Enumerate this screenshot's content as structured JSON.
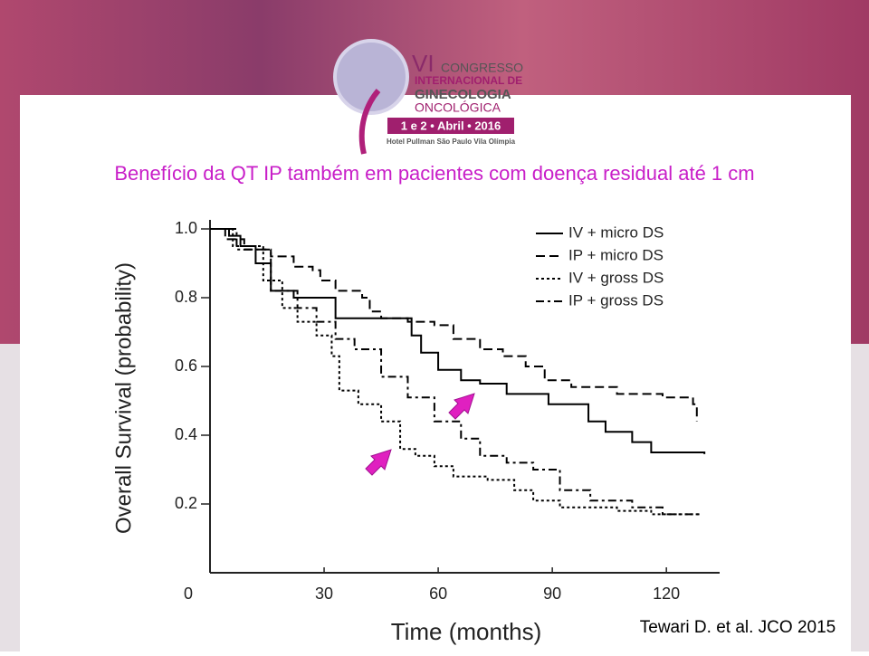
{
  "header": {
    "logo_line1": "VI",
    "logo_line2": "CONGRESSO",
    "logo_line3": "INTERNACIONAL DE",
    "logo_line4": "GINECOLOGIA",
    "logo_line5": "ONCOLÓGICA",
    "logo_date": "1 e 2 • Abril • 2016",
    "logo_venue": "Hotel Pullman São Paulo Vila Olímpia"
  },
  "citation": "Tewari D. et al. JCO 2015",
  "chart_data": {
    "type": "line",
    "step": "post",
    "title": "Benefício da QT IP também em pacientes com doença residual até 1 cm",
    "y_label": "Overall Survival (probability)",
    "x_label": "Time (months)",
    "xlim": [
      0,
      134
    ],
    "ylim": [
      0,
      1.0
    ],
    "xticks": [
      0,
      30,
      60,
      90,
      120
    ],
    "yticks": [
      0.2,
      0.4,
      0.6,
      {
        "value": 0.8,
        "label": "0.8"
      },
      {
        "value": 1.0,
        "label": "1.0"
      }
    ],
    "legend": "top-right",
    "series": [
      {
        "name": "IV + micro DS",
        "color": "#000000",
        "dash": "solid",
        "x": [
          0,
          5,
          8,
          12,
          16,
          22,
          33,
          53,
          55.5,
          60,
          66,
          71,
          78,
          89,
          99.5,
          104,
          111,
          116,
          130
        ],
        "values": [
          1.0,
          0.98,
          0.95,
          0.9,
          0.82,
          0.8,
          0.74,
          0.69,
          0.64,
          0.59,
          0.56,
          0.55,
          0.52,
          0.49,
          0.44,
          0.41,
          0.38,
          0.35,
          0.345
        ]
      },
      {
        "name": "IP + micro DS",
        "color": "#000000",
        "dash": "dashed",
        "x": [
          0,
          4,
          9,
          16,
          22,
          27,
          29,
          33,
          40,
          42,
          45,
          52,
          59,
          64,
          71,
          77,
          83,
          88,
          95,
          107,
          119,
          127,
          128
        ],
        "values": [
          1.0,
          0.97,
          0.94,
          0.92,
          0.89,
          0.88,
          0.85,
          0.82,
          0.8,
          0.76,
          0.74,
          0.73,
          0.72,
          0.68,
          0.65,
          0.63,
          0.6,
          0.56,
          0.54,
          0.52,
          0.51,
          0.49,
          0.44
        ]
      },
      {
        "name": "IV + gross DS",
        "color": "#000000",
        "dash": "dotted",
        "x": [
          0,
          6,
          14,
          19,
          23,
          28,
          32,
          34,
          39,
          45,
          50,
          54,
          59,
          64,
          73,
          80,
          85,
          92,
          107,
          116,
          129
        ],
        "values": [
          1.0,
          0.95,
          0.85,
          0.77,
          0.73,
          0.69,
          0.63,
          0.53,
          0.49,
          0.44,
          0.36,
          0.34,
          0.31,
          0.28,
          0.27,
          0.24,
          0.21,
          0.19,
          0.18,
          0.17,
          0.17
        ]
      },
      {
        "name": "IP + gross DS",
        "color": "#000000",
        "dash": "dashdot",
        "x": [
          0,
          7,
          16,
          23,
          28,
          33,
          38,
          45,
          52,
          59,
          66,
          71,
          78,
          85,
          92,
          100,
          111,
          119,
          129
        ],
        "values": [
          1.0,
          0.94,
          0.82,
          0.77,
          0.73,
          0.68,
          0.65,
          0.57,
          0.51,
          0.44,
          0.39,
          0.34,
          0.32,
          0.3,
          0.24,
          0.21,
          0.19,
          0.17,
          0.17
        ]
      }
    ]
  }
}
